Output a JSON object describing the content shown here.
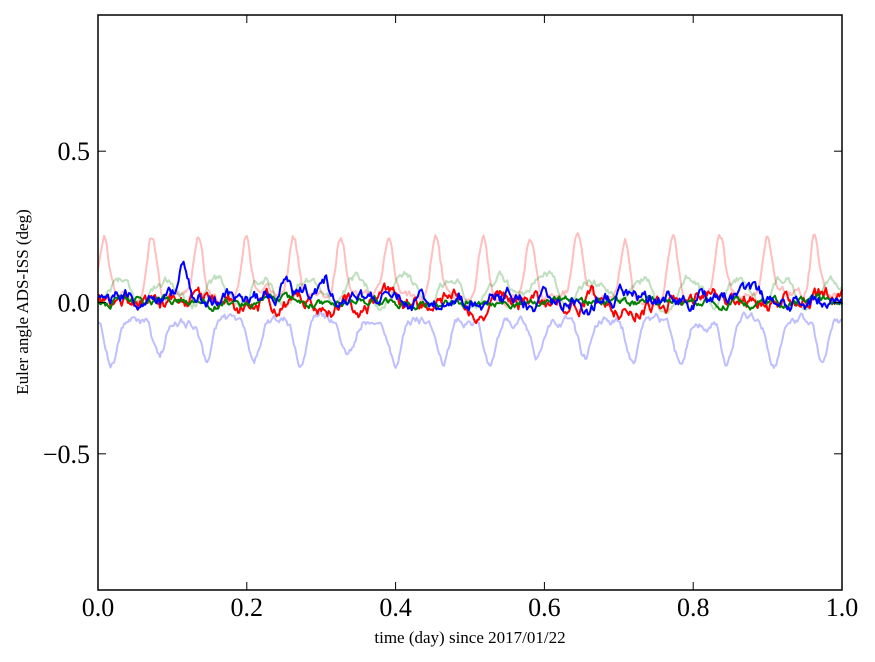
{
  "chart_data": {
    "type": "line",
    "title": "",
    "xlabel": "time (day) since 2017/01/22",
    "ylabel": "Euler angle ADS-ISS (deg)",
    "xlim": [
      0.0,
      1.0
    ],
    "ylim": [
      -0.95,
      0.95
    ],
    "xticks": [
      0.0,
      0.2,
      0.4,
      0.6,
      0.8,
      1.0
    ],
    "xtick_labels": [
      "0.0",
      "0.2",
      "0.4",
      "0.6",
      "0.8",
      "1.0"
    ],
    "yticks": [
      -0.5,
      0.0,
      0.5
    ],
    "ytick_labels": [
      "−0.5",
      "0.0",
      "0.5"
    ],
    "grid": false,
    "legend": "none",
    "series": [
      {
        "color": "#ff0000",
        "alpha": 0.25,
        "stroke": 2,
        "baseline": 0.02,
        "amplitude": 0.2,
        "period": 0.0637,
        "phase": 0.008,
        "sharp": 5,
        "noise": 0.012,
        "x_range": [
          0.0,
          1.0
        ]
      },
      {
        "color": "#008000",
        "alpha": 0.25,
        "stroke": 2,
        "baseline": 0.0,
        "amplitude": 0.08,
        "period": 0.0637,
        "phase": 0.03,
        "sharp": 1,
        "noise": 0.012,
        "x_range": [
          0.0,
          1.0
        ]
      },
      {
        "color": "#0000ff",
        "alpha": 0.25,
        "stroke": 2,
        "baseline": -0.06,
        "amplitude": -0.13,
        "period": 0.0637,
        "phase": 0.018,
        "sharp": 3,
        "noise": 0.012,
        "x_range": [
          0.0,
          1.0
        ]
      },
      {
        "color": "#ff0000",
        "alpha": 1.0,
        "stroke": 2,
        "baseline": 0.0,
        "amplitude": 0.0,
        "period": 0.0637,
        "phase": 0.0,
        "sharp": 1,
        "noise": 0.02,
        "x_range": [
          0.0,
          1.0
        ]
      },
      {
        "color": "#008000",
        "alpha": 1.0,
        "stroke": 2,
        "baseline": 0.0,
        "amplitude": 0.0,
        "period": 0.0637,
        "phase": 0.0,
        "sharp": 1,
        "noise": 0.01,
        "x_range": [
          0.0,
          1.0
        ]
      },
      {
        "color": "#0000ff",
        "alpha": 1.0,
        "stroke": 2,
        "baseline": 0.01,
        "amplitude": 0.0,
        "period": 0.0637,
        "phase": 0.0,
        "sharp": 1,
        "noise": 0.018,
        "x_range": [
          0.0,
          1.0
        ],
        "bumps": [
          [
            0.115,
            0.085
          ],
          [
            0.25,
            0.06
          ],
          [
            0.305,
            0.06
          ],
          [
            0.585,
            -0.04
          ],
          [
            0.66,
            -0.03
          ]
        ]
      }
    ]
  }
}
